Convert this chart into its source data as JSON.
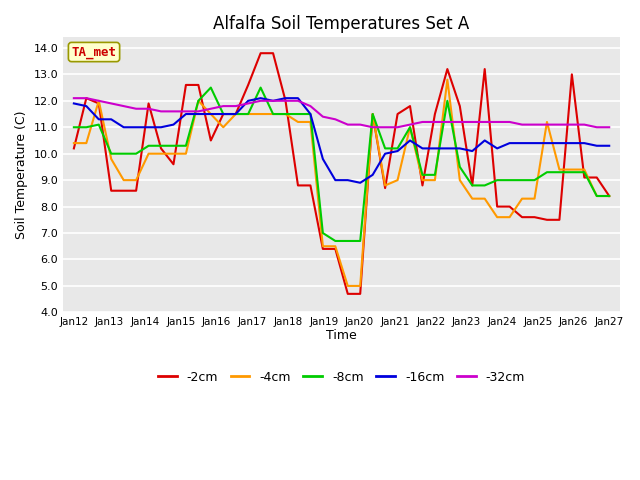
{
  "title": "Alfalfa Soil Temperatures Set A",
  "xlabel": "Time",
  "ylabel": "Soil Temperature (C)",
  "ylim": [
    4.0,
    14.4
  ],
  "yticks": [
    4.0,
    5.0,
    6.0,
    7.0,
    8.0,
    9.0,
    10.0,
    11.0,
    12.0,
    13.0,
    14.0
  ],
  "background_color": "#ffffff",
  "plot_bg_color": "#e8e8e8",
  "annotation_text": "TA_met",
  "annotation_color": "#cc0000",
  "annotation_bg": "#ffffcc",
  "colors": {
    "-2cm": "#dd0000",
    "-4cm": "#ff9900",
    "-8cm": "#00cc00",
    "-16cm": "#0000dd",
    "-32cm": "#cc00cc"
  },
  "x_labels": [
    "Jan 12",
    "Jan 13",
    "Jan 14",
    "Jan 15",
    "Jan 16",
    "Jan 17",
    "Jan 18",
    "Jan 19",
    "Jan 20",
    "Jan 21",
    "Jan 22",
    "Jan 23",
    "Jan 24",
    "Jan 25",
    "Jan 26",
    "Jan 27"
  ],
  "series": {
    "-2cm": [
      10.2,
      12.1,
      11.9,
      8.6,
      8.6,
      8.6,
      11.9,
      10.2,
      9.6,
      12.6,
      12.6,
      10.5,
      11.5,
      11.5,
      12.6,
      13.8,
      13.8,
      12.0,
      8.8,
      8.8,
      6.4,
      6.4,
      4.7,
      4.7,
      11.5,
      8.7,
      11.5,
      11.8,
      8.8,
      11.5,
      13.2,
      11.8,
      8.8,
      13.2,
      8.0,
      8.0,
      7.6,
      7.6,
      7.5,
      7.5,
      13.0,
      9.1,
      9.1,
      8.4
    ],
    "-4cm": [
      10.4,
      10.4,
      12.0,
      9.8,
      9.0,
      9.0,
      10.0,
      10.0,
      10.0,
      10.0,
      12.0,
      11.5,
      11.0,
      11.5,
      11.5,
      11.5,
      11.5,
      11.5,
      11.2,
      11.2,
      6.5,
      6.5,
      5.0,
      5.0,
      11.5,
      8.8,
      9.0,
      11.0,
      9.0,
      9.0,
      12.8,
      9.0,
      8.3,
      8.3,
      7.6,
      7.6,
      8.3,
      8.3,
      11.2,
      9.4,
      9.4,
      9.4,
      8.4,
      8.4
    ],
    "-8cm": [
      11.0,
      11.0,
      11.1,
      10.0,
      10.0,
      10.0,
      10.3,
      10.3,
      10.3,
      10.3,
      12.0,
      12.5,
      11.5,
      11.5,
      11.5,
      12.5,
      11.5,
      11.5,
      11.5,
      11.5,
      7.0,
      6.7,
      6.7,
      6.7,
      11.5,
      10.2,
      10.2,
      11.0,
      9.2,
      9.2,
      12.0,
      9.5,
      8.8,
      8.8,
      9.0,
      9.0,
      9.0,
      9.0,
      9.3,
      9.3,
      9.3,
      9.3,
      8.4,
      8.4
    ],
    "-16cm": [
      11.9,
      11.8,
      11.3,
      11.3,
      11.0,
      11.0,
      11.0,
      11.0,
      11.1,
      11.5,
      11.5,
      11.5,
      11.5,
      11.5,
      12.0,
      12.1,
      12.0,
      12.1,
      12.1,
      11.5,
      9.8,
      9.0,
      9.0,
      8.9,
      9.2,
      10.0,
      10.1,
      10.5,
      10.2,
      10.2,
      10.2,
      10.2,
      10.1,
      10.5,
      10.2,
      10.4,
      10.4,
      10.4,
      10.4,
      10.4,
      10.4,
      10.4,
      10.3,
      10.3
    ],
    "-32cm": [
      12.1,
      12.1,
      12.0,
      11.9,
      11.8,
      11.7,
      11.7,
      11.6,
      11.6,
      11.6,
      11.6,
      11.7,
      11.8,
      11.8,
      11.9,
      12.0,
      12.0,
      12.0,
      12.0,
      11.8,
      11.4,
      11.3,
      11.1,
      11.1,
      11.0,
      11.0,
      11.0,
      11.1,
      11.2,
      11.2,
      11.2,
      11.2,
      11.2,
      11.2,
      11.2,
      11.2,
      11.1,
      11.1,
      11.1,
      11.1,
      11.1,
      11.1,
      11.0,
      11.0
    ]
  }
}
